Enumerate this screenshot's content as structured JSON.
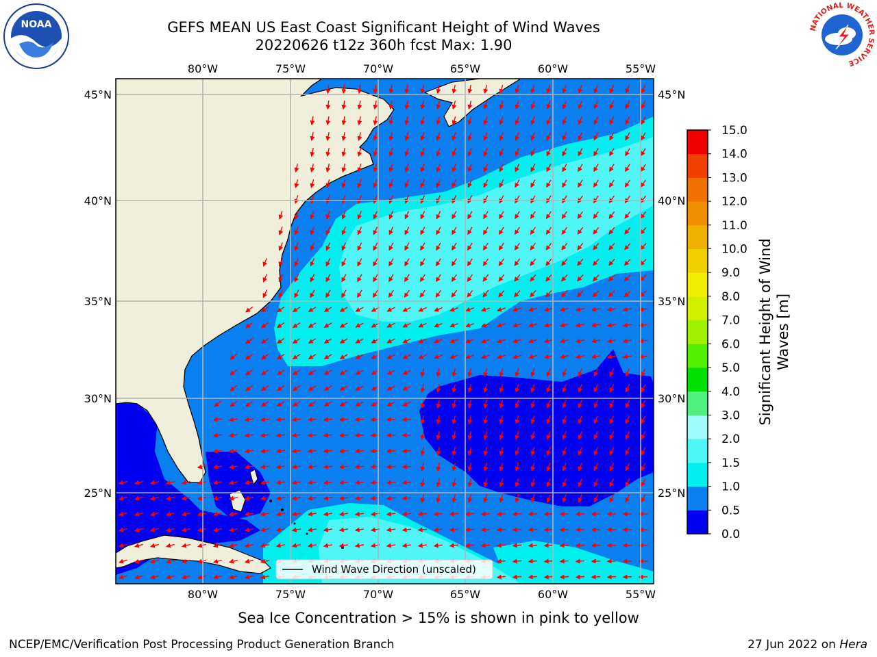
{
  "header": {
    "title_line1": "GEFS MEAN US East Coast Significant Height of Wind Waves",
    "title_line2": "20220626 t12z 360h fcst   Max: 1.90"
  },
  "logos": {
    "left": "NOAA",
    "right": "NATIONAL WEATHER SERVICE"
  },
  "map": {
    "lon_labels": [
      "80°W",
      "75°W",
      "70°W",
      "65°W",
      "60°W",
      "55°W"
    ],
    "lat_labels": [
      "45°N",
      "40°N",
      "35°N",
      "30°N",
      "25°N"
    ],
    "legend_label": "Wind Wave Direction (unscaled)"
  },
  "colorbar": {
    "label": "Significant Height of Wind Waves [m]",
    "label_line1": "Significant Height of Wind",
    "label_line2": "Waves [m]",
    "ticks": [
      "0.0",
      "0.5",
      "1.0",
      "1.5",
      "2.0",
      "3.0",
      "4.0",
      "5.0",
      "6.0",
      "7.0",
      "8.0",
      "9.0",
      "10.0",
      "11.0",
      "12.0",
      "13.0",
      "14.0",
      "15.0"
    ],
    "colors": [
      "#0000f0",
      "#0a80f0",
      "#00f0f0",
      "#50f5f5",
      "#a0fafa",
      "#50f080",
      "#00e000",
      "#50f000",
      "#a0f000",
      "#d0f000",
      "#f0f000",
      "#f0d000",
      "#f0b000",
      "#f09000",
      "#f07000",
      "#f04000",
      "#f00000"
    ]
  },
  "colors": {
    "land": "#efefdc",
    "arrow": "#ff0000",
    "grid": "#b4b4b4"
  },
  "subnote": "Sea Ice Concentration > 15% is shown in pink to yellow",
  "footer": {
    "left": "NCEP/EMC/Verification Post Processing Product Generation Branch",
    "right_date": "27 Jun 2022 on ",
    "right_host": "Hera"
  }
}
